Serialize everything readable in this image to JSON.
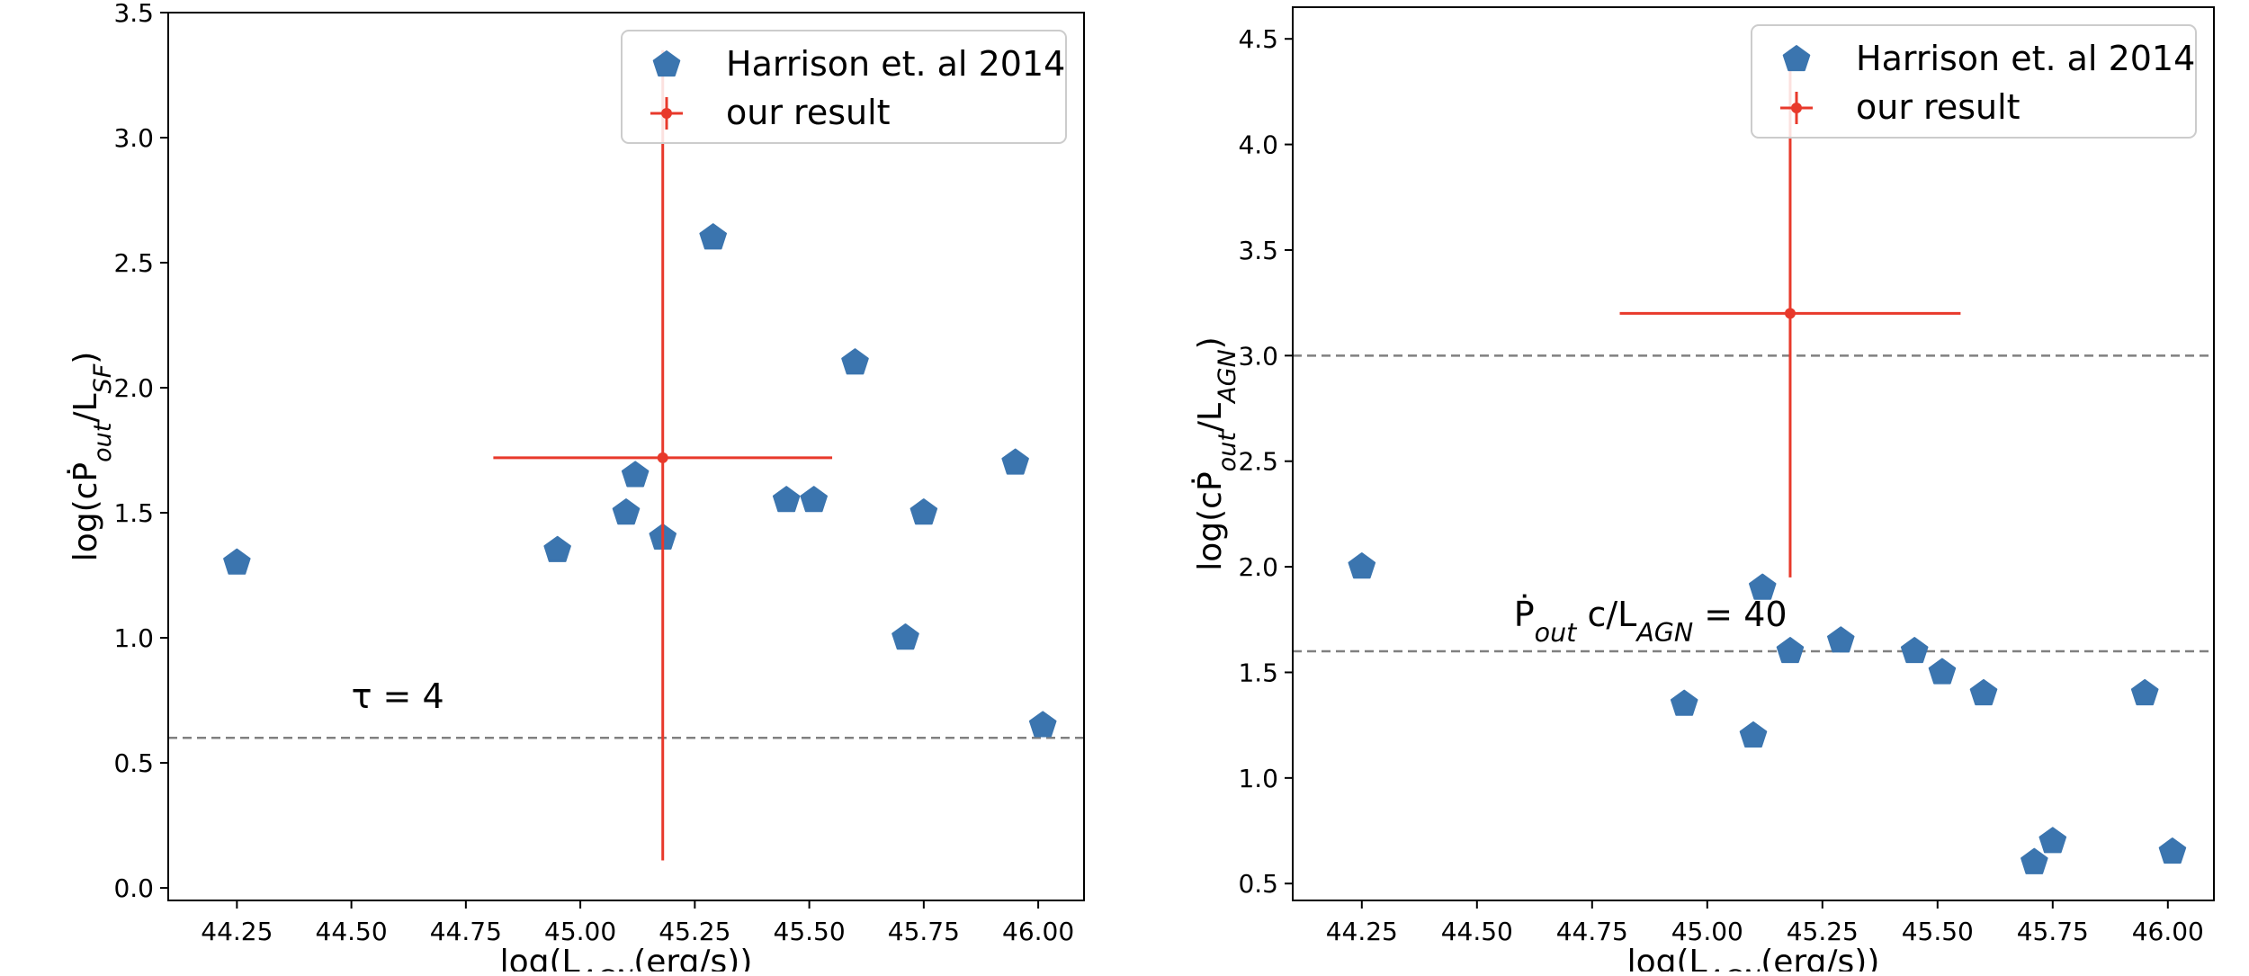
{
  "chart_data": [
    {
      "type": "scatter",
      "xlabel": "log(L_AGN(erg/s))",
      "ylabel": "log(cṖ_out/L_SF)",
      "xlim": [
        44.1,
        46.1
      ],
      "ylim": [
        -0.05,
        3.5
      ],
      "xticks": [
        "44.25",
        "44.50",
        "44.75",
        "45.00",
        "45.25",
        "45.50",
        "45.75",
        "46.00"
      ],
      "yticks": [
        "0.0",
        "0.5",
        "1.0",
        "1.5",
        "2.0",
        "2.5",
        "3.0",
        "3.5"
      ],
      "legend": {
        "placement": "upper right",
        "entries": [
          "Harrison et. al 2014",
          "our result"
        ]
      },
      "series": [
        {
          "name": "Harrison et. al 2014",
          "marker": "pentagon",
          "color": "#3b75af",
          "x": [
            44.25,
            44.95,
            45.1,
            45.12,
            45.18,
            45.29,
            45.45,
            45.51,
            45.6,
            45.71,
            45.75,
            45.95,
            46.01
          ],
          "y": [
            1.3,
            1.35,
            1.5,
            1.65,
            1.4,
            2.6,
            1.55,
            1.55,
            2.1,
            1.0,
            1.5,
            1.7,
            0.65
          ]
        },
        {
          "name": "our result",
          "marker": "errorbar",
          "color": "#e8392b",
          "x": [
            45.18
          ],
          "y": [
            1.72
          ],
          "x_range": [
            44.81,
            45.55
          ],
          "y_range": [
            0.11,
            3.35
          ]
        }
      ],
      "hlines": [
        {
          "y": 0.6,
          "style": "dashed",
          "color": "#808080"
        }
      ],
      "annotations": [
        {
          "text": "τ = 4",
          "x": 44.5,
          "y": 0.72
        }
      ]
    },
    {
      "type": "scatter",
      "xlabel": "log(L_AGN(erg/s))",
      "ylabel": "log(cṖ_out/L_AGN)",
      "xlim": [
        44.1,
        46.1
      ],
      "ylim": [
        0.42,
        4.65
      ],
      "xticks": [
        "44.25",
        "44.50",
        "44.75",
        "45.00",
        "45.25",
        "45.50",
        "45.75",
        "46.00"
      ],
      "yticks": [
        "0.5",
        "1.0",
        "1.5",
        "2.0",
        "2.5",
        "3.0",
        "3.5",
        "4.0",
        "4.5"
      ],
      "legend": {
        "placement": "upper right",
        "entries": [
          "Harrison et. al 2014",
          "our result"
        ]
      },
      "series": [
        {
          "name": "Harrison et. al 2014",
          "marker": "pentagon",
          "color": "#3b75af",
          "x": [
            44.25,
            44.95,
            45.1,
            45.12,
            45.18,
            45.29,
            45.45,
            45.51,
            45.6,
            45.71,
            45.75,
            45.95,
            46.01
          ],
          "y": [
            2.0,
            1.35,
            1.2,
            1.9,
            1.6,
            1.65,
            1.6,
            1.5,
            1.4,
            0.6,
            0.7,
            1.4,
            0.65
          ]
        },
        {
          "name": "our result",
          "marker": "errorbar",
          "color": "#e8392b",
          "x": [
            45.18
          ],
          "y": [
            3.2
          ],
          "x_range": [
            44.81,
            45.55
          ],
          "y_range": [
            1.95,
            4.45
          ]
        }
      ],
      "hlines": [
        {
          "y": 3.0,
          "style": "dashed",
          "color": "#808080"
        },
        {
          "y": 1.6,
          "style": "dashed",
          "color": "#808080"
        }
      ],
      "annotations": [
        {
          "text": "Ṗ_out c/L_AGN = 40",
          "x": 44.58,
          "y": 1.72
        }
      ]
    }
  ]
}
